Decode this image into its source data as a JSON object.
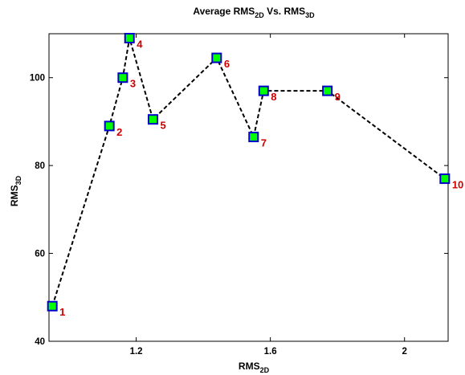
{
  "chart_data": {
    "type": "line",
    "title": {
      "main": "Average RMS",
      "sub": "2D",
      "mid": " Vs. RMS",
      "sub2": "3D"
    },
    "xlabel": {
      "main": "RMS",
      "sub": "2D"
    },
    "ylabel": {
      "main": "RMS",
      "sub": "3D"
    },
    "xlim": [
      0.94,
      2.13
    ],
    "ylim": [
      40,
      110
    ],
    "x_ticks": [
      1.2,
      1.6,
      2
    ],
    "x_tick_labels": [
      "1.2",
      "1.6",
      "2"
    ],
    "y_ticks": [
      40,
      60,
      80,
      100
    ],
    "y_tick_labels": [
      "40",
      "60",
      "80",
      "100"
    ],
    "grid": false,
    "line_color": "#000000",
    "line_style": "dashed",
    "marker": "square",
    "marker_fill": "#00ff00",
    "marker_edge": "#0000cc",
    "label_color": "#cc0000",
    "points": [
      {
        "label": "1",
        "x": 0.95,
        "y": 48
      },
      {
        "label": "2",
        "x": 1.12,
        "y": 89
      },
      {
        "label": "3",
        "x": 1.16,
        "y": 100
      },
      {
        "label": "4",
        "x": 1.18,
        "y": 109
      },
      {
        "label": "5",
        "x": 1.25,
        "y": 90.5
      },
      {
        "label": "6",
        "x": 1.44,
        "y": 104.5
      },
      {
        "label": "7",
        "x": 1.55,
        "y": 86.5
      },
      {
        "label": "8",
        "x": 1.58,
        "y": 97
      },
      {
        "label": "9",
        "x": 1.77,
        "y": 97
      },
      {
        "label": "10",
        "x": 2.12,
        "y": 77
      }
    ]
  }
}
